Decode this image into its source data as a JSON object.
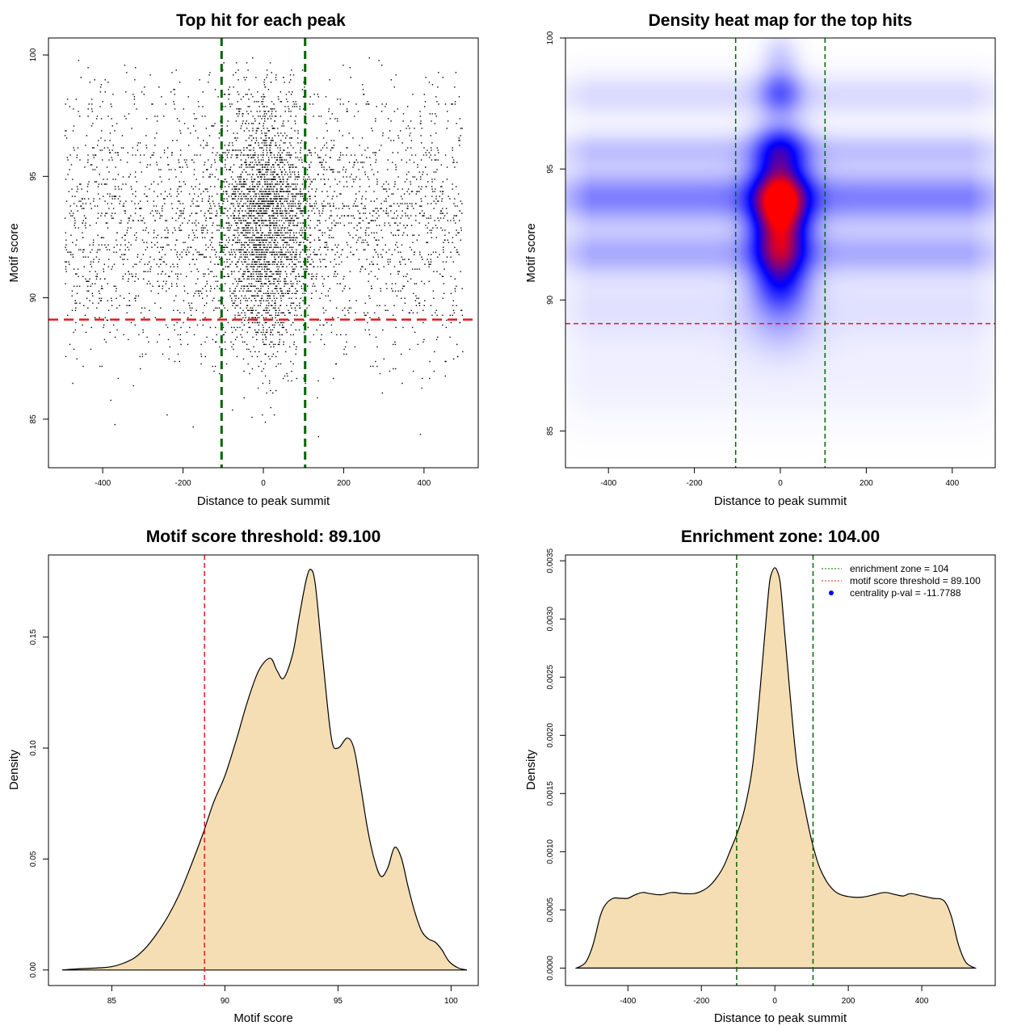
{
  "colors": {
    "green": "#006400",
    "red": "#e41a1c",
    "fill": "#f5deb3",
    "heat_low": "#ffffff",
    "heat_mid": "#0000ff",
    "heat_high": "#ff0000"
  },
  "chart_data": [
    {
      "id": "scatter",
      "type": "scatter",
      "title": "Top hit for each peak",
      "xlabel": "Distance to peak summit",
      "ylabel": "Motif score",
      "xlim": [
        -535,
        535
      ],
      "ylim": [
        83,
        100.7
      ],
      "xticks": [
        "-400",
        "-200",
        "0",
        "200",
        "400"
      ],
      "yticks": [
        "85",
        "90",
        "95",
        "100"
      ],
      "vlines": [
        -104,
        104
      ],
      "hline": 89.1,
      "points_note": "dense cloud of several thousand peaks, x in [-500, 500], y in [83.5, 100]"
    },
    {
      "id": "heatmap",
      "type": "heatmap",
      "title": "Density heat map for the top hits",
      "xlabel": "Distance to peak summit",
      "ylabel": "Motif score",
      "xlim": [
        -500,
        500
      ],
      "ylim": [
        83.6,
        100
      ],
      "xticks": [
        "-400",
        "-200",
        "0",
        "200",
        "400"
      ],
      "yticks": [
        "85",
        "90",
        "95",
        "100"
      ],
      "vlines": [
        -104,
        104
      ],
      "hline": 89.1,
      "hotspots": [
        {
          "x": 0,
          "y": 93.9,
          "sx": 45,
          "sy": 1.0,
          "w": 1.0
        },
        {
          "x": 0,
          "y": 92.0,
          "sx": 45,
          "sy": 1.1,
          "w": 0.75
        },
        {
          "x": 0,
          "y": 95.8,
          "sx": 42,
          "sy": 0.7,
          "w": 0.45
        },
        {
          "x": 0,
          "y": 97.9,
          "sx": 35,
          "sy": 0.6,
          "w": 0.35
        },
        {
          "x": 0,
          "y": 99.3,
          "sx": 30,
          "sy": 0.6,
          "w": 0.12
        },
        {
          "x": 0,
          "y": 90.4,
          "sx": 45,
          "sy": 0.8,
          "w": 0.3
        },
        {
          "x": 0,
          "y": 88.8,
          "sx": 60,
          "sy": 0.8,
          "w": 0.1
        }
      ],
      "bands": [
        {
          "y": 93.9,
          "sy": 0.7,
          "w": 0.35
        },
        {
          "y": 91.8,
          "sy": 0.6,
          "w": 0.22
        },
        {
          "y": 95.7,
          "sy": 0.5,
          "w": 0.16
        },
        {
          "y": 97.8,
          "sy": 0.6,
          "w": 0.1
        },
        {
          "y": 89.7,
          "sy": 1.0,
          "w": 0.08
        },
        {
          "y": 87.0,
          "sy": 1.2,
          "w": 0.04
        }
      ]
    },
    {
      "id": "score-density",
      "type": "area",
      "title": "Motif score threshold: 89.100",
      "xlabel": "Motif score",
      "ylabel": "Density",
      "xlim": [
        82.2,
        101.2
      ],
      "ylim": [
        -0.007,
        0.187
      ],
      "xticks": [
        "85",
        "90",
        "95",
        "100"
      ],
      "yticks": [
        "0.00",
        "0.05",
        "0.10",
        "0.15"
      ],
      "vline": 89.1,
      "x": [
        82.8,
        83.5,
        84.5,
        85.0,
        85.5,
        86.0,
        86.5,
        87.0,
        87.5,
        88.0,
        88.5,
        89.0,
        89.5,
        90.0,
        90.5,
        91.0,
        91.5,
        92.0,
        92.3,
        92.6,
        93.0,
        93.3,
        93.6,
        93.8,
        94.0,
        94.3,
        94.7,
        95.0,
        95.4,
        95.7,
        96.0,
        96.3,
        96.6,
        96.9,
        97.2,
        97.5,
        97.8,
        98.1,
        98.4,
        98.7,
        99.0,
        99.3,
        99.6,
        99.9,
        100.3,
        100.7
      ],
      "y": [
        0.0,
        0.0005,
        0.001,
        0.0015,
        0.003,
        0.0055,
        0.01,
        0.0165,
        0.0245,
        0.0345,
        0.047,
        0.0605,
        0.0755,
        0.0875,
        0.1035,
        0.121,
        0.135,
        0.1405,
        0.135,
        0.1315,
        0.1425,
        0.16,
        0.176,
        0.1805,
        0.1735,
        0.143,
        0.105,
        0.1,
        0.1045,
        0.1,
        0.083,
        0.064,
        0.05,
        0.0422,
        0.046,
        0.0552,
        0.0505,
        0.0375,
        0.026,
        0.0175,
        0.014,
        0.0125,
        0.009,
        0.004,
        0.001,
        0.0
      ]
    },
    {
      "id": "distance-density",
      "type": "area",
      "title": "Enrichment zone: 104.00",
      "xlabel": "Distance to peak summit",
      "ylabel": "Density",
      "xlim": [
        -570,
        600
      ],
      "ylim": [
        -0.00015,
        0.00355
      ],
      "xticks": [
        "-400",
        "-200",
        "0",
        "200",
        "400"
      ],
      "yticks": [
        "0.0000",
        "0.0005",
        "0.0010",
        "0.0015",
        "0.0020",
        "0.0025",
        "0.0030",
        "0.0035"
      ],
      "vlines": [
        -104,
        104
      ],
      "legend": [
        {
          "label": "enrichment zone = 104",
          "kind": "dotted-line",
          "color": "#006400"
        },
        {
          "label": "motif score threshold = 89.100",
          "kind": "dotted-line",
          "color": "#e41a1c"
        },
        {
          "label": "centrality p-val = -11.7788",
          "kind": "point",
          "color": "#0000ff"
        }
      ],
      "x": [
        -540,
        -515,
        -495,
        -475,
        -460,
        -440,
        -420,
        -400,
        -380,
        -360,
        -340,
        -310,
        -280,
        -250,
        -220,
        -200,
        -180,
        -160,
        -140,
        -120,
        -100,
        -80,
        -60,
        -40,
        -25,
        -15,
        -8,
        0,
        8,
        15,
        25,
        40,
        60,
        80,
        100,
        120,
        140,
        160,
        180,
        210,
        240,
        270,
        300,
        330,
        350,
        370,
        400,
        430,
        460,
        480,
        500,
        520,
        545
      ],
      "y": [
        0.0,
        5e-05,
        0.0002,
        0.00045,
        0.00055,
        0.0006,
        0.0006,
        0.0006,
        0.00063,
        0.00065,
        0.00064,
        0.00063,
        0.00065,
        0.00064,
        0.00064,
        0.00066,
        0.0007,
        0.00077,
        0.00087,
        0.00102,
        0.00118,
        0.0014,
        0.00175,
        0.0024,
        0.00295,
        0.0033,
        0.0034,
        0.00344,
        0.0034,
        0.0033,
        0.00295,
        0.0024,
        0.00175,
        0.0014,
        0.0011,
        0.00088,
        0.00075,
        0.00067,
        0.00063,
        0.00061,
        0.00061,
        0.00063,
        0.00065,
        0.00063,
        0.00062,
        0.00064,
        0.00062,
        0.0006,
        0.00058,
        0.00045,
        0.0002,
        5e-05,
        0.0
      ]
    }
  ]
}
